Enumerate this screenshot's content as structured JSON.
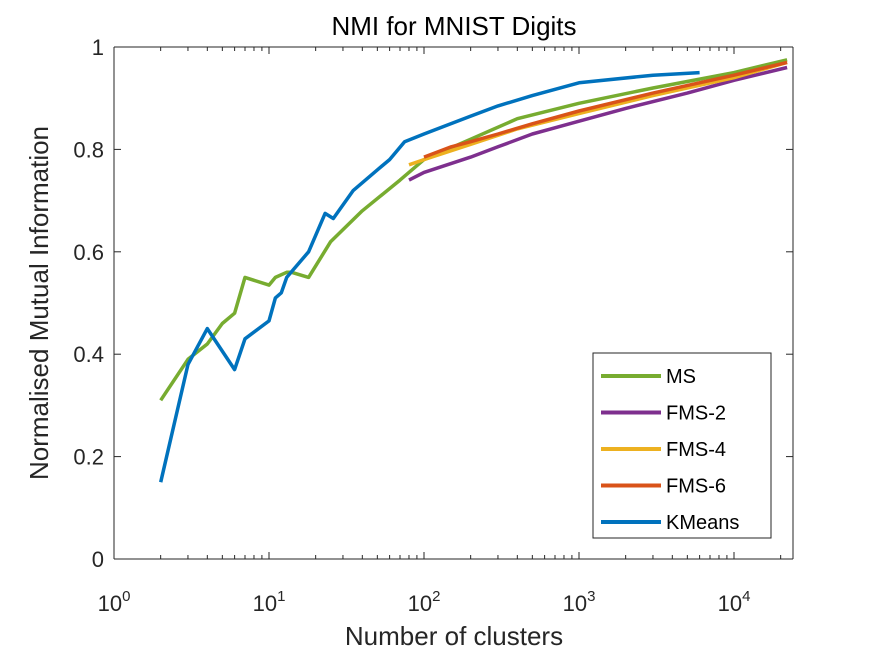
{
  "chart_data": {
    "type": "line",
    "title": "NMI for MNIST Digits",
    "xlabel": "Number of clusters",
    "ylabel": "Normalised Mutual Information",
    "xscale": "log",
    "xlim": [
      1,
      22000
    ],
    "ylim": [
      0,
      1
    ],
    "xticks": [
      {
        "value": 1,
        "base": "10",
        "exp": "0"
      },
      {
        "value": 10,
        "base": "10",
        "exp": "1"
      },
      {
        "value": 100,
        "base": "10",
        "exp": "2"
      },
      {
        "value": 1000,
        "base": "10",
        "exp": "3"
      },
      {
        "value": 10000,
        "base": "10",
        "exp": "4"
      }
    ],
    "yticks": [
      {
        "value": 0,
        "label": "0"
      },
      {
        "value": 0.2,
        "label": "0.2"
      },
      {
        "value": 0.4,
        "label": "0.4"
      },
      {
        "value": 0.6,
        "label": "0.6"
      },
      {
        "value": 0.8,
        "label": "0.8"
      },
      {
        "value": 1,
        "label": "1"
      }
    ],
    "grid": false,
    "legend_position": "bottom-right",
    "series": [
      {
        "name": "MS",
        "color": "#77AC30",
        "points": [
          [
            2,
            0.31
          ],
          [
            3,
            0.39
          ],
          [
            4,
            0.42
          ],
          [
            5,
            0.46
          ],
          [
            6,
            0.48
          ],
          [
            7,
            0.55
          ],
          [
            10,
            0.535
          ],
          [
            11,
            0.55
          ],
          [
            13,
            0.56
          ],
          [
            14,
            0.56
          ],
          [
            18,
            0.55
          ],
          [
            25,
            0.62
          ],
          [
            40,
            0.68
          ],
          [
            70,
            0.74
          ],
          [
            100,
            0.78
          ],
          [
            200,
            0.82
          ],
          [
            400,
            0.86
          ],
          [
            1000,
            0.89
          ],
          [
            3000,
            0.92
          ],
          [
            10000,
            0.95
          ],
          [
            22000,
            0.975
          ]
        ]
      },
      {
        "name": "FMS-2",
        "color": "#7E2F8E",
        "points": [
          [
            80,
            0.74
          ],
          [
            100,
            0.755
          ],
          [
            200,
            0.785
          ],
          [
            300,
            0.805
          ],
          [
            500,
            0.83
          ],
          [
            1000,
            0.855
          ],
          [
            2000,
            0.88
          ],
          [
            5000,
            0.91
          ],
          [
            10000,
            0.935
          ],
          [
            22000,
            0.96
          ]
        ]
      },
      {
        "name": "FMS-4",
        "color": "#EDB120",
        "points": [
          [
            80,
            0.77
          ],
          [
            100,
            0.78
          ],
          [
            200,
            0.81
          ],
          [
            400,
            0.84
          ],
          [
            1000,
            0.87
          ],
          [
            3000,
            0.905
          ],
          [
            10000,
            0.94
          ],
          [
            22000,
            0.97
          ]
        ]
      },
      {
        "name": "FMS-6",
        "color": "#D95319",
        "points": [
          [
            100,
            0.785
          ],
          [
            150,
            0.805
          ],
          [
            200,
            0.815
          ],
          [
            300,
            0.83
          ],
          [
            500,
            0.85
          ],
          [
            1000,
            0.875
          ],
          [
            3000,
            0.91
          ],
          [
            10000,
            0.945
          ],
          [
            22000,
            0.97
          ]
        ]
      },
      {
        "name": "KMeans",
        "color": "#0072BD",
        "points": [
          [
            2,
            0.15
          ],
          [
            3,
            0.38
          ],
          [
            4,
            0.45
          ],
          [
            6,
            0.37
          ],
          [
            7,
            0.43
          ],
          [
            10,
            0.465
          ],
          [
            11,
            0.51
          ],
          [
            12,
            0.52
          ],
          [
            13,
            0.55
          ],
          [
            18,
            0.6
          ],
          [
            23,
            0.675
          ],
          [
            26,
            0.665
          ],
          [
            35,
            0.72
          ],
          [
            50,
            0.76
          ],
          [
            60,
            0.78
          ],
          [
            75,
            0.815
          ],
          [
            100,
            0.83
          ],
          [
            200,
            0.865
          ],
          [
            300,
            0.885
          ],
          [
            500,
            0.905
          ],
          [
            1000,
            0.93
          ],
          [
            3000,
            0.945
          ],
          [
            6000,
            0.95
          ]
        ]
      }
    ]
  }
}
